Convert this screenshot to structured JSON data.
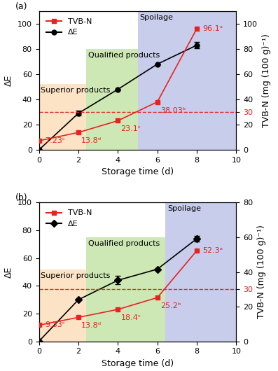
{
  "chart_data": [
    {
      "type": "line",
      "panel_label": "(a)",
      "xlabel": "Storage time (d)",
      "ylabel": "ΔE",
      "y2label": "TVB-N (mg (100 g)⁻¹)",
      "x": [
        0,
        2,
        4,
        6,
        8
      ],
      "xlim": [
        0,
        10
      ],
      "xticks": [
        0,
        2,
        4,
        6,
        8,
        10
      ],
      "ylim": [
        0,
        110
      ],
      "yticks": [
        0,
        20,
        40,
        60,
        80,
        100
      ],
      "y2lim": [
        0,
        110
      ],
      "y2ticks": [
        0,
        20,
        30,
        40,
        60,
        80,
        100
      ],
      "legend": "upper left",
      "series": [
        {
          "name": "TVB-N",
          "color": "#e8231f",
          "marker": "square",
          "line_style": "solid",
          "axis": "y2",
          "values": [
            7.23,
            13.8,
            23.1,
            38.03,
            96.1
          ],
          "value_labels": [
            "7.23ᶜ",
            "13.8ᵈ",
            "23.1ᶜ",
            "38.03ᵇ",
            "96.1ᵃ"
          ]
        },
        {
          "name": "ΔE",
          "color": "#000000",
          "marker": "circle",
          "line_style": "solid",
          "values": [
            0,
            29,
            48,
            68,
            83
          ],
          "errors": [
            0,
            2,
            0,
            0,
            2.5
          ]
        }
      ],
      "threshold": {
        "value": 30,
        "axis": "y2",
        "color": "#e8231f",
        "line_style": "dashed"
      },
      "regions": [
        {
          "label": "Superior products",
          "start": 0,
          "end": 2.4,
          "top": 52,
          "color": "#fde3c6"
        },
        {
          "label": "Qualified products",
          "start": 2.4,
          "end": 5,
          "top": 80,
          "color": "#cde8b5"
        },
        {
          "label": "Spoilage",
          "start": 5,
          "end": 10,
          "top": 110,
          "color": "#c7cdea"
        }
      ]
    },
    {
      "type": "line",
      "panel_label": "(b)",
      "xlabel": "Storage time (d)",
      "ylabel": "ΔE",
      "y2label": "TVB-N (mg (100 g)⁻¹)",
      "x": [
        0,
        2,
        4,
        6,
        8
      ],
      "xlim": [
        0,
        10
      ],
      "xticks": [
        0,
        2,
        4,
        6,
        8,
        10
      ],
      "ylim": [
        0,
        100
      ],
      "yticks": [
        0,
        20,
        40,
        60,
        80,
        100
      ],
      "y2lim": [
        0,
        80
      ],
      "y2ticks": [
        0,
        20,
        30,
        40,
        60,
        80
      ],
      "legend": "upper left",
      "series": [
        {
          "name": "TVB-N",
          "color": "#e8231f",
          "marker": "square",
          "line_style": "solid",
          "axis": "y2",
          "values": [
            9.33,
            13.8,
            18.4,
            25.2,
            52.3
          ],
          "value_labels": [
            "9.33ᶜ",
            "13.8ᵈ",
            "18.4ᶜ",
            "25.2ᵇ",
            "52.3ᵃ"
          ]
        },
        {
          "name": "ΔE",
          "color": "#000000",
          "marker": "diamond",
          "line_style": "solid",
          "values": [
            0,
            30,
            44,
            52,
            74
          ],
          "errors": [
            0,
            0,
            3,
            0,
            2
          ]
        }
      ],
      "threshold": {
        "value": 30,
        "axis": "y2",
        "color": "#e8231f",
        "line_style": "dashed"
      },
      "regions": [
        {
          "label": "Superior products",
          "start": 0,
          "end": 2.4,
          "top": 52,
          "color": "#fde3c6"
        },
        {
          "label": "Qualified products",
          "start": 2.4,
          "end": 6.4,
          "top": 75,
          "color": "#cde8b5"
        },
        {
          "label": "Spoilage",
          "start": 6.4,
          "end": 10,
          "top": 100,
          "color": "#c7cdea"
        }
      ]
    }
  ]
}
